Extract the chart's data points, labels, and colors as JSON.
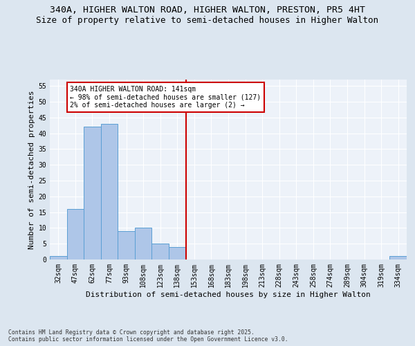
{
  "title_line1": "340A, HIGHER WALTON ROAD, HIGHER WALTON, PRESTON, PR5 4HT",
  "title_line2": "Size of property relative to semi-detached houses in Higher Walton",
  "xlabel": "Distribution of semi-detached houses by size in Higher Walton",
  "ylabel": "Number of semi-detached properties",
  "footer": "Contains HM Land Registry data © Crown copyright and database right 2025.\nContains public sector information licensed under the Open Government Licence v3.0.",
  "bin_labels": [
    "32sqm",
    "47sqm",
    "62sqm",
    "77sqm",
    "93sqm",
    "108sqm",
    "123sqm",
    "138sqm",
    "153sqm",
    "168sqm",
    "183sqm",
    "198sqm",
    "213sqm",
    "228sqm",
    "243sqm",
    "258sqm",
    "274sqm",
    "289sqm",
    "304sqm",
    "319sqm",
    "334sqm"
  ],
  "bin_values": [
    1,
    16,
    42,
    43,
    9,
    10,
    5,
    4,
    0,
    0,
    0,
    0,
    0,
    0,
    0,
    0,
    0,
    0,
    0,
    0,
    1
  ],
  "bar_color": "#aec6e8",
  "bar_edge_color": "#5a9fd4",
  "vline_x": 7.5,
  "annotation_line1": "340A HIGHER WALTON ROAD: 141sqm",
  "annotation_line2": "← 98% of semi-detached houses are smaller (127)",
  "annotation_line3": "2% of semi-detached houses are larger (2) →",
  "annotation_box_color": "#ffffff",
  "annotation_box_edge": "#cc0000",
  "vline_color": "#cc0000",
  "ylim": [
    0,
    57
  ],
  "yticks": [
    0,
    5,
    10,
    15,
    20,
    25,
    30,
    35,
    40,
    45,
    50,
    55
  ],
  "bg_color": "#dce6f0",
  "plot_bg_color": "#edf2f9",
  "grid_color": "#ffffff",
  "title_fontsize": 9.5,
  "subtitle_fontsize": 9,
  "axis_label_fontsize": 8,
  "tick_fontsize": 7,
  "annotation_fontsize": 7
}
